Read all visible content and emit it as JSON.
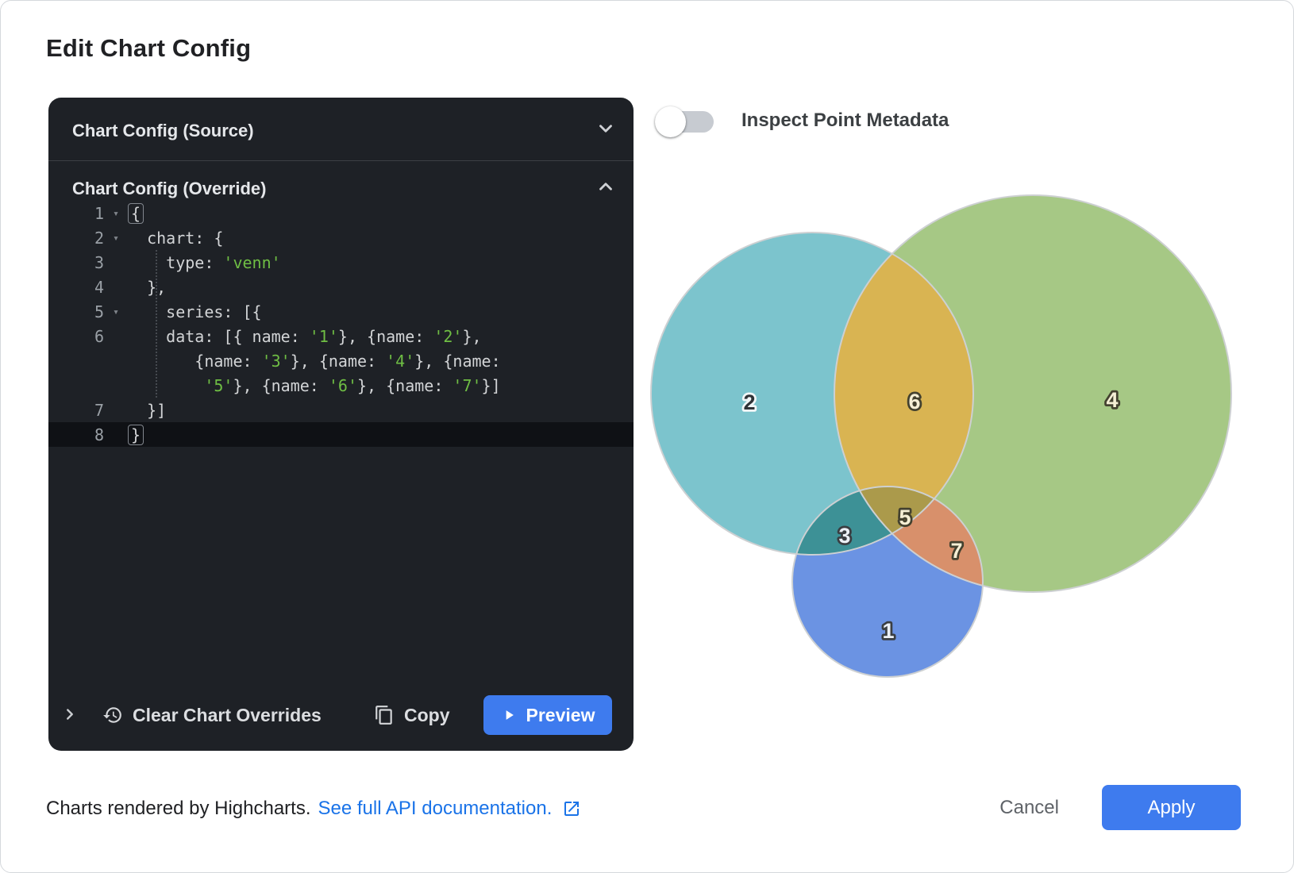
{
  "title": "Edit Chart Config",
  "editor": {
    "source_header": "Chart Config (Source)",
    "override_header": "Chart Config (Override)",
    "rows": [
      {
        "num": "1",
        "fold": "▾",
        "current": false,
        "segs": [
          {
            "c": "bracket",
            "t": "{"
          }
        ]
      },
      {
        "num": "2",
        "fold": "▾",
        "current": false,
        "segs": [
          {
            "c": "plain",
            "t": "  chart: {"
          }
        ]
      },
      {
        "num": "3",
        "fold": "",
        "current": false,
        "segs": [
          {
            "c": "plain",
            "t": "    type: "
          },
          {
            "c": "str",
            "t": "'venn'"
          }
        ]
      },
      {
        "num": "4",
        "fold": "",
        "current": false,
        "segs": [
          {
            "c": "plain",
            "t": "  },"
          }
        ]
      },
      {
        "num": "5",
        "fold": "▾",
        "current": false,
        "segs": [
          {
            "c": "plain",
            "t": "    series: [{"
          }
        ]
      },
      {
        "num": "6",
        "fold": "",
        "current": false,
        "segs": [
          {
            "c": "plain",
            "t": "    data: [{ name: "
          },
          {
            "c": "str",
            "t": "'1'"
          },
          {
            "c": "plain",
            "t": "}, {name: "
          },
          {
            "c": "str",
            "t": "'2'"
          },
          {
            "c": "plain",
            "t": "},"
          }
        ]
      },
      {
        "num": "",
        "fold": "",
        "current": false,
        "segs": [
          {
            "c": "plain",
            "t": "       {name: "
          },
          {
            "c": "str",
            "t": "'3'"
          },
          {
            "c": "plain",
            "t": "}, {name: "
          },
          {
            "c": "str",
            "t": "'4'"
          },
          {
            "c": "plain",
            "t": "}, {name:"
          }
        ]
      },
      {
        "num": "",
        "fold": "",
        "current": false,
        "segs": [
          {
            "c": "plain",
            "t": "        "
          },
          {
            "c": "str",
            "t": "'5'"
          },
          {
            "c": "plain",
            "t": "}, {name: "
          },
          {
            "c": "str",
            "t": "'6'"
          },
          {
            "c": "plain",
            "t": "}, {name: "
          },
          {
            "c": "str",
            "t": "'7'"
          },
          {
            "c": "plain",
            "t": "}]"
          }
        ]
      },
      {
        "num": "7",
        "fold": "",
        "current": false,
        "segs": [
          {
            "c": "plain",
            "t": "  }]"
          }
        ]
      },
      {
        "num": "8",
        "fold": "",
        "current": true,
        "segs": [
          {
            "c": "bracket",
            "t": "}"
          }
        ]
      }
    ],
    "toolbar": {
      "clear_label": "Clear Chart Overrides",
      "copy_label": "Copy",
      "preview_label": "Preview"
    }
  },
  "inspect_toggle": {
    "label": "Inspect Point Metadata",
    "state": "off"
  },
  "icons": {
    "source_header": "chevron-down",
    "override_header": "chevron-up",
    "toolbar_expand": "chevron-right",
    "clear": "history-restore",
    "copy": "content-copy",
    "preview": "play",
    "doc_link": "open-in-new"
  },
  "chart_data": {
    "type": "venn",
    "title": "",
    "series": [
      {
        "data": [
          {
            "name": "1"
          },
          {
            "name": "2"
          },
          {
            "name": "3"
          },
          {
            "name": "4"
          },
          {
            "name": "5"
          },
          {
            "name": "6"
          },
          {
            "name": "7"
          }
        ]
      }
    ],
    "regions": {
      "2": "teal circle (top-left)",
      "4": "green circle (right)",
      "1": "blue circle (bottom)",
      "6": "teal ∩ green (gold)",
      "3": "teal ∩ blue (dark teal)",
      "7": "green ∩ blue (salmon)",
      "5": "teal ∩ green ∩ blue (olive center)"
    }
  },
  "venn": {
    "colors": {
      "teal": "#7cc4cd",
      "green": "#a6c885",
      "blue": "#6b93e3",
      "gold": "#d9b452",
      "darkteal": "#3d9196",
      "salmon": "#d8906b",
      "olive": "#ab9a4b",
      "stroke": "#cdd0d2"
    },
    "labels": [
      {
        "text": "1"
      },
      {
        "text": "2"
      },
      {
        "text": "3"
      },
      {
        "text": "4"
      },
      {
        "text": "5"
      },
      {
        "text": "6"
      },
      {
        "text": "7"
      }
    ]
  },
  "footer": {
    "text": "Charts rendered by Highcharts.",
    "link": "See full API documentation.",
    "cancel_label": "Cancel",
    "apply_label": "Apply"
  }
}
